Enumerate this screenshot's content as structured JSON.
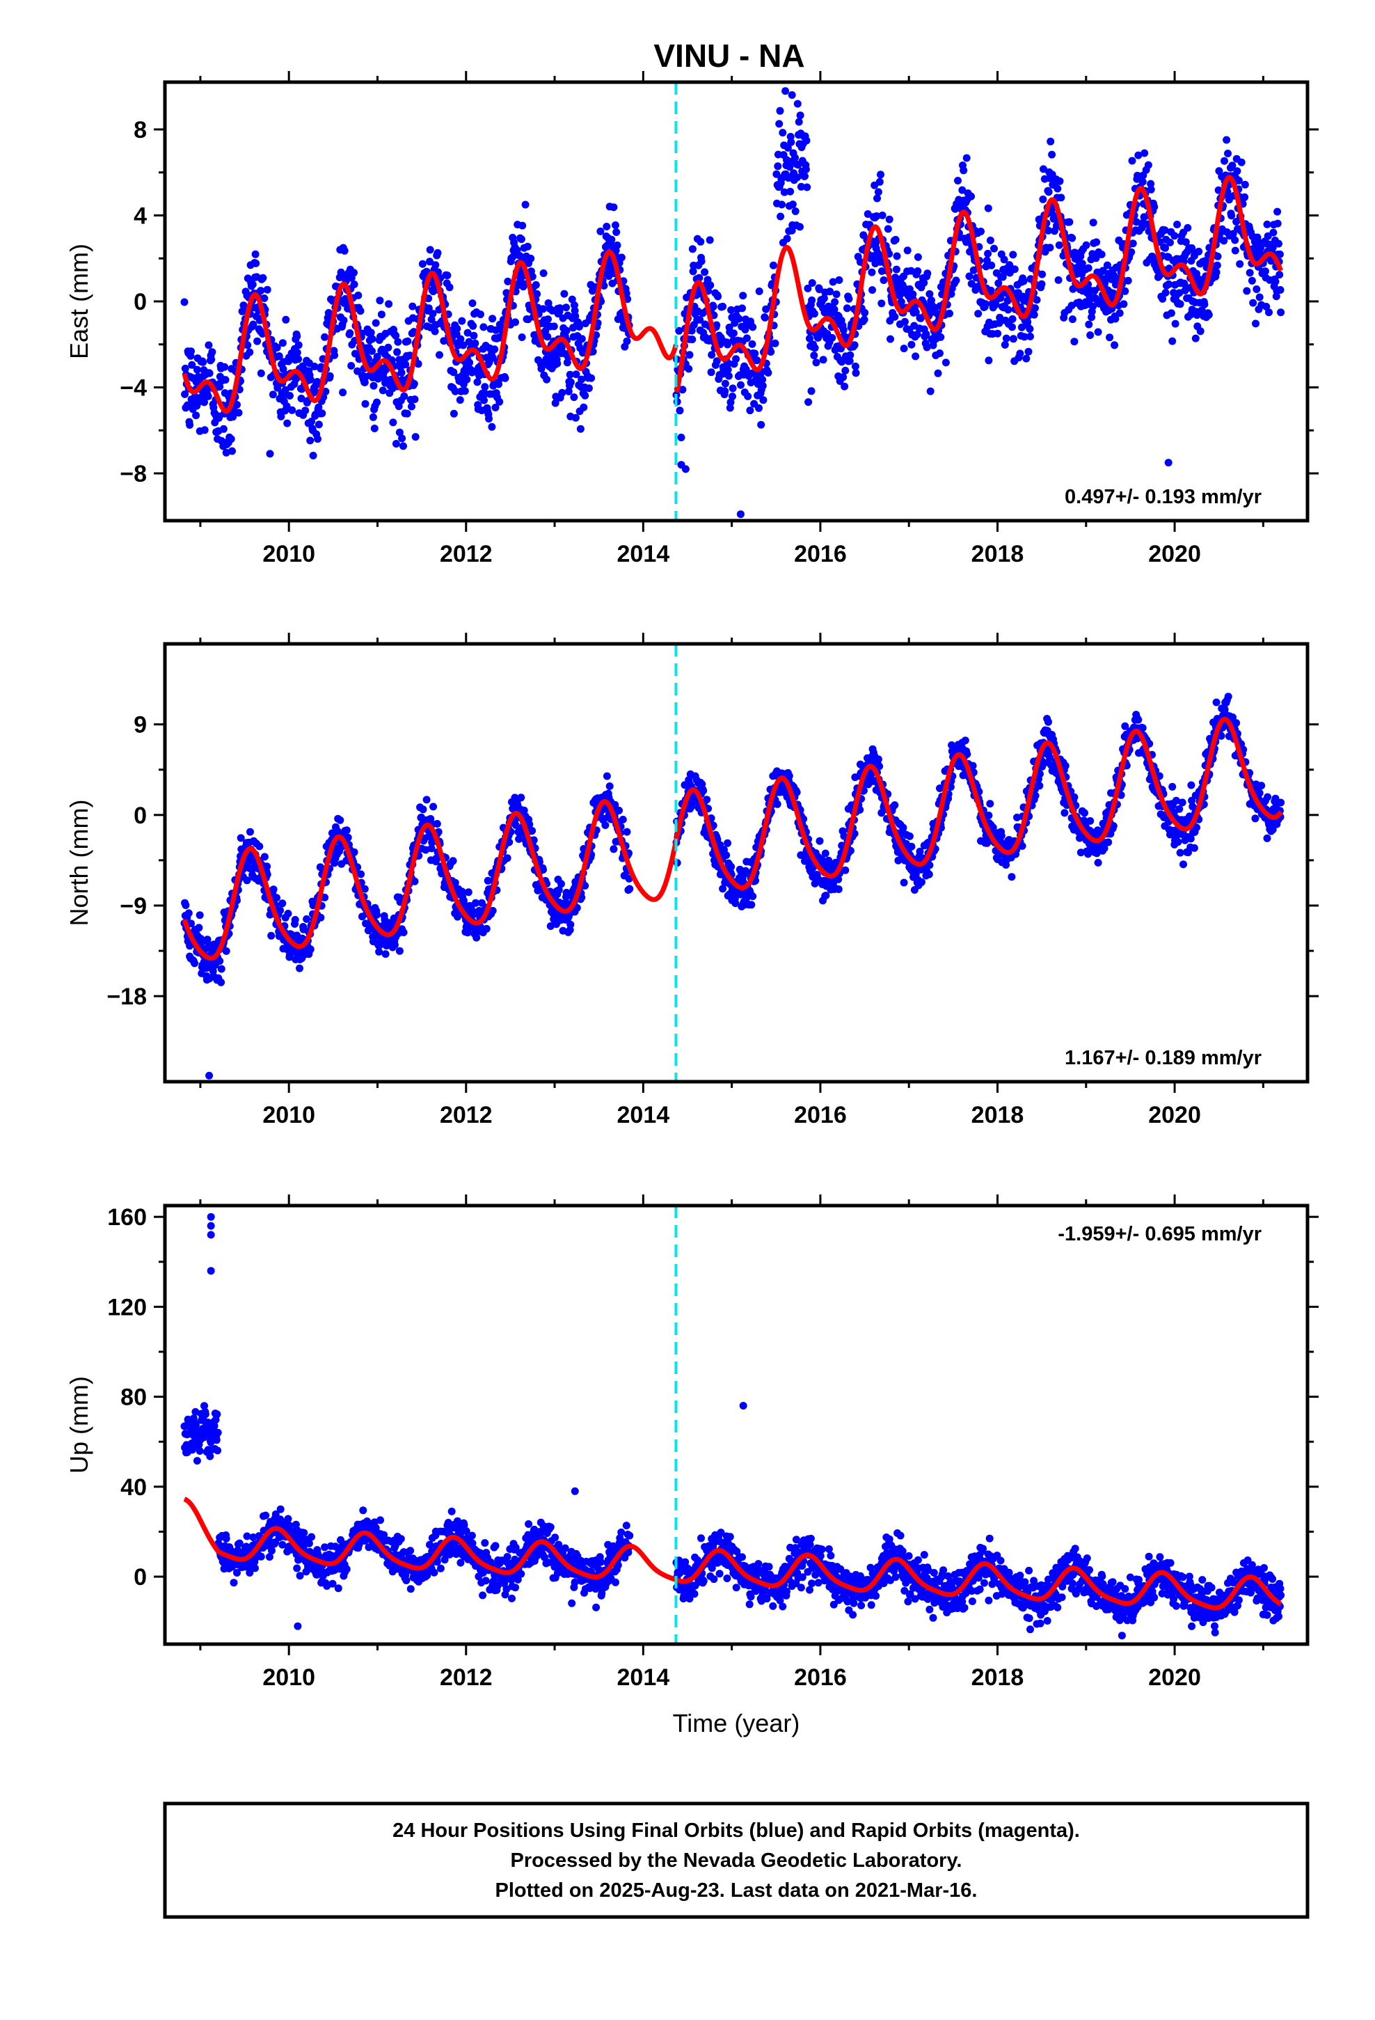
{
  "figure": {
    "title": "VINU - NA",
    "footer_lines": [
      "24 Hour Positions Using Final Orbits (blue) and Rapid Orbits (magenta).",
      "Processed by the Nevada Geodetic Laboratory.",
      "Plotted on 2025-Aug-23. Last data on 2021-Mar-16."
    ]
  },
  "colors": {
    "data_points": "#0000ff",
    "model_fit": "#ff0000",
    "equipment_change_line": "#00e5ee",
    "frame": "#000000"
  },
  "chart_data": [
    {
      "type": "scatter",
      "title": "VINU - NA",
      "xlabel": "",
      "ylabel": "East (mm)",
      "xlim": [
        2008.6,
        2021.5
      ],
      "ylim": [
        -10.2,
        10.2
      ],
      "xticks": [
        2010,
        2012,
        2014,
        2016,
        2018,
        2020
      ],
      "yticks": [
        -8,
        -4,
        0,
        4,
        8
      ],
      "ytick_labels": [
        "−8",
        "−4",
        "0",
        "4",
        "8"
      ],
      "grid": false,
      "data_start": "2008-Nov",
      "data_end": "2021-Mar-16",
      "data_gap": [
        2013.85,
        2014.37
      ],
      "equipment_change_epoch": 2014.37,
      "rate_text": "0.497+/- 0.193 mm/yr",
      "rate_text_position": "bottom-right",
      "series": [
        {
          "marker": "dot",
          "approx_points_per_year": 365,
          "scatter_spread_mm": 1.2
        },
        {
          "style": "line",
          "offset_before_break_mm": -0.15,
          "offset_after_break_mm": -0.15,
          "step_at_break_mm": -2.4,
          "annual_amplitude_mm": 2.0,
          "annual_peak_phase_year": 0.65,
          "semiannual_amplitude_mm": 1.2,
          "linear_rate_mm_per_yr": 0.497
        }
      ],
      "outliers": [
        {
          "x": 2008.95,
          "y": -5.3
        },
        {
          "x": 2011.43,
          "y": -6.3
        },
        {
          "x": 2014.43,
          "y": -7.6
        },
        {
          "x": 2014.48,
          "y": -7.8
        },
        {
          "x": 2015.1,
          "y": -9.9
        },
        {
          "x": 2015.68,
          "y": 9.6
        },
        {
          "x": 2019.93,
          "y": -7.5
        }
      ],
      "anomaly": {
        "x_range": [
          2015.5,
          2015.85
        ],
        "y_mean": 6.0,
        "spread": 1.3
      }
    },
    {
      "type": "scatter",
      "xlabel": "",
      "ylabel": "North (mm)",
      "xlim": [
        2008.6,
        2021.5
      ],
      "ylim": [
        -26.5,
        17
      ],
      "xticks": [
        2010,
        2012,
        2014,
        2016,
        2018,
        2020
      ],
      "yticks": [
        -18,
        -9,
        0,
        9
      ],
      "ytick_labels": [
        "−18",
        "−9",
        "0",
        "9"
      ],
      "grid": false,
      "data_start": "2008-Nov",
      "data_end": "2021-Mar-16",
      "data_gap": [
        2013.85,
        2014.37
      ],
      "equipment_change_epoch": 2014.37,
      "rate_text": "1.167+/- 0.189 mm/yr",
      "rate_text_position": "bottom-right",
      "series": [
        {
          "marker": "dot",
          "approx_points_per_year": 365,
          "scatter_spread_mm": 1.1
        },
        {
          "style": "line",
          "reference_epoch": 2015,
          "offset_mm": -2.8,
          "linear_rate_mm_per_yr": 1.167,
          "annual_amplitude_mm": 5.1,
          "annual_peak_phase_year": 0.58,
          "semiannual_amplitude_mm": 0.8
        }
      ],
      "outliers": [
        {
          "x": 2008.88,
          "y": -13.0
        },
        {
          "x": 2009.05,
          "y": -12.5
        },
        {
          "x": 2009.07,
          "y": -16.0
        },
        {
          "x": 2009.1,
          "y": -25.9
        },
        {
          "x": 2009.8,
          "y": -12.0
        }
      ]
    },
    {
      "type": "scatter",
      "xlabel": "Time (year)",
      "ylabel": "Up (mm)",
      "xlim": [
        2008.6,
        2021.5
      ],
      "ylim": [
        -30,
        165
      ],
      "xticks": [
        2010,
        2012,
        2014,
        2016,
        2018,
        2020
      ],
      "yticks": [
        0,
        40,
        80,
        120,
        160
      ],
      "ytick_labels": [
        "0",
        "40",
        "80",
        "120",
        "160"
      ],
      "grid": false,
      "data_start": "2008-Nov",
      "data_end": "2021-Mar-16",
      "data_gap": [
        2013.85,
        2014.37
      ],
      "equipment_change_epoch": 2014.37,
      "rate_text": "-1.959+/- 0.695 mm/yr",
      "rate_text_position": "top-right",
      "series": [
        {
          "marker": "dot",
          "approx_points_per_year": 365,
          "scatter_spread_mm": 4.5
        },
        {
          "style": "line",
          "reference_epoch": 2015,
          "offset_mm": 3.0,
          "linear_rate_mm_per_yr": -1.959,
          "annual_amplitude_mm": 7.0,
          "annual_peak_phase_year": 0.88,
          "semiannual_amplitude_mm": 1.5,
          "early_offset_before_epoch": 2009.2,
          "early_offset_mm": 12
        }
      ],
      "early_cluster": {
        "x_range": [
          2008.82,
          2009.2
        ],
        "y_mean": 64,
        "spread": 5
      },
      "outliers": [
        {
          "x": 2009.12,
          "y": 160
        },
        {
          "x": 2009.12,
          "y": 156
        },
        {
          "x": 2009.12,
          "y": 152
        },
        {
          "x": 2009.12,
          "y": 136
        },
        {
          "x": 2013.23,
          "y": 38
        },
        {
          "x": 2015.13,
          "y": 76
        },
        {
          "x": 2011.8,
          "y": 24
        },
        {
          "x": 2010.1,
          "y": -22
        }
      ]
    }
  ]
}
